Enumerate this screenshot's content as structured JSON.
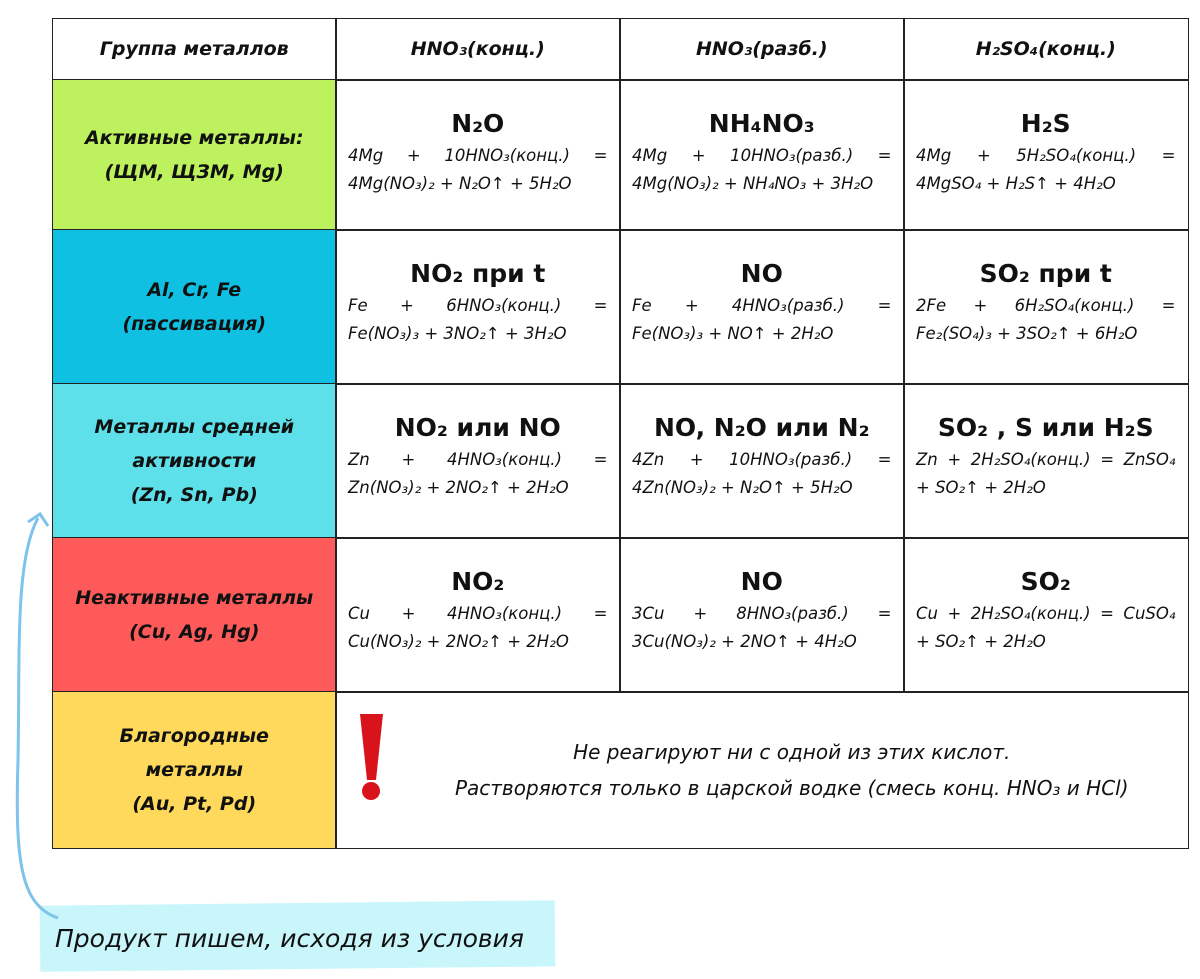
{
  "table": {
    "header": [
      "Группа металлов",
      "HNO₃(конц.)",
      "HNO₃(разб.)",
      "H₂SO₄(конц.)"
    ],
    "rows": [
      {
        "group": [
          "Активные металлы:",
          "(ЩМ, ЩЗМ, Mg)"
        ],
        "cells": [
          {
            "product": "N₂O",
            "equation": [
              "4Mg + 10HNO₃(конц.) =",
              "4Mg(NO₃)₂ + N₂O↑ + 5H₂O"
            ]
          },
          {
            "product": "NH₄NO₃",
            "equation": [
              "4Mg + 10HNO₃(разб.) =",
              "4Mg(NO₃)₂ + NH₄NO₃ + 3H₂O"
            ]
          },
          {
            "product": "H₂S",
            "equation": [
              "4Mg + 5H₂SO₄(конц.) =",
              "4MgSO₄ + H₂S↑ + 4H₂O"
            ]
          }
        ]
      },
      {
        "group": [
          "Al, Cr, Fe",
          "(пассивация)"
        ],
        "cells": [
          {
            "product": "NO₂ при t",
            "equation": [
              "Fe + 6HNO₃(конц.) =",
              "Fe(NO₃)₃ + 3NO₂↑ + 3H₂O"
            ]
          },
          {
            "product": "NO",
            "equation": [
              "Fe + 4HNO₃(разб.) =",
              "Fe(NO₃)₃ + NO↑ + 2H₂O"
            ]
          },
          {
            "product": "SO₂  при t",
            "equation": [
              "2Fe + 6H₂SO₄(конц.) =",
              "Fe₂(SO₄)₃ + 3SO₂↑ + 6H₂O"
            ]
          }
        ]
      },
      {
        "group": [
          "Металлы средней",
          "активности",
          "(Zn, Sn, Pb)"
        ],
        "cells": [
          {
            "product": "NO₂  или NO",
            "equation": [
              "Zn + 4HNO₃(конц.) =",
              "Zn(NO₃)₂ + 2NO₂↑ + 2H₂O"
            ]
          },
          {
            "product": "NO, N₂O или N₂",
            "equation": [
              "4Zn + 10HNO₃(разб.) =",
              "4Zn(NO₃)₂ + N₂O↑ + 5H₂O"
            ]
          },
          {
            "product": "SO₂ , S  или H₂S",
            "equation": [
              "Zn + 2H₂SO₄(конц.) = ZnSO₄",
              "+ SO₂↑ + 2H₂O"
            ]
          }
        ]
      },
      {
        "group": [
          "Неактивные металлы",
          "(Cu, Ag, Hg)"
        ],
        "cells": [
          {
            "product": "NO₂",
            "equation": [
              "Cu + 4HNO₃(конц.) =",
              "Cu(NO₃)₂ + 2NO₂↑ + 2H₂O"
            ]
          },
          {
            "product": "NO",
            "equation": [
              "3Cu + 8HNO₃(разб.) =",
              "3Cu(NO₃)₂ + 2NO↑ + 4H₂O"
            ]
          },
          {
            "product": "SO₂",
            "equation": [
              "Cu + 2H₂SO₄(конц.) = CuSO₄",
              "+ SO₂↑ + 2H₂O"
            ]
          }
        ]
      },
      {
        "group": [
          "Благородные",
          "металлы",
          "(Au, Pt, Pd)"
        ],
        "note": [
          "Не реагируют ни с одной из этих кислот.",
          "Растворяются только в царской водке (смесь конц. HNO₃ и HCl)"
        ]
      }
    ]
  },
  "footnote": "Продукт пишем, исходя из условия"
}
